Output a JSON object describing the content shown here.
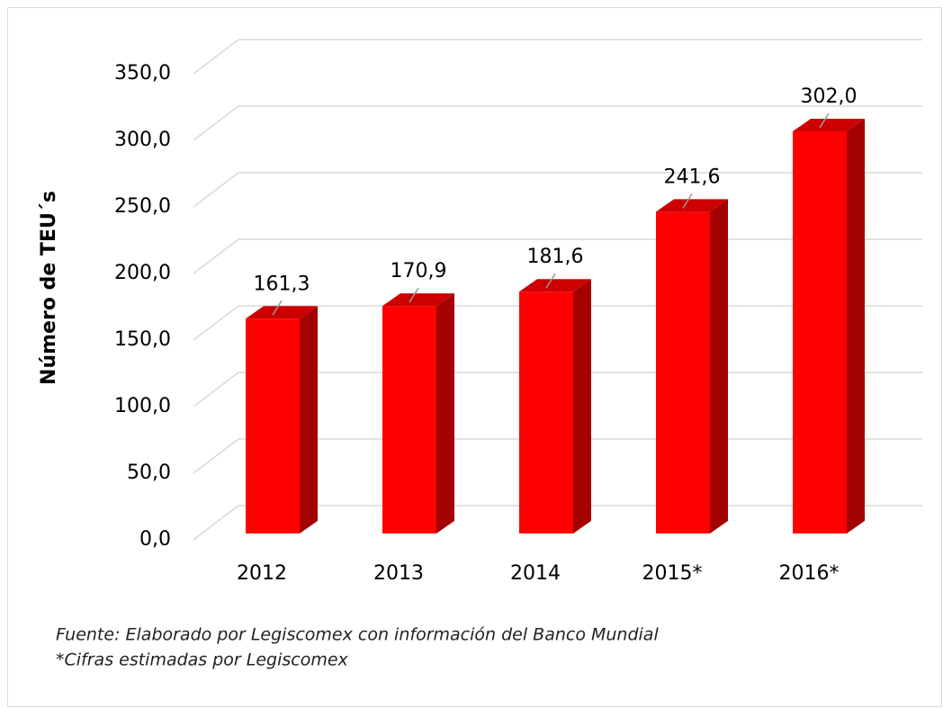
{
  "chart_data": {
    "type": "bar3d",
    "y_label": "Número de TEU´s",
    "categories": [
      "2012",
      "2013",
      "2014",
      "2015*",
      "2016*"
    ],
    "values": [
      161.3,
      170.9,
      181.6,
      241.6,
      302.0
    ],
    "value_labels": [
      "161,3",
      "170,9",
      "181,6",
      "241,6",
      "302,0"
    ],
    "color": "#ff0000",
    "ylim": [
      0,
      350
    ],
    "yticks": [
      {
        "value": 0,
        "label": "0,0"
      },
      {
        "value": 50,
        "label": "50,0"
      },
      {
        "value": 100,
        "label": "100,0"
      },
      {
        "value": 150,
        "label": "150,0"
      },
      {
        "value": 200,
        "label": "200,0"
      },
      {
        "value": 250,
        "label": "250,0"
      },
      {
        "value": 300,
        "label": "300,0"
      },
      {
        "value": 350,
        "label": "350,0"
      }
    ],
    "grid": true,
    "source": "Fuente: Elaborado por Legiscomex con información del Banco Mundial",
    "note": "*Cifras estimadas por Legiscomex"
  }
}
